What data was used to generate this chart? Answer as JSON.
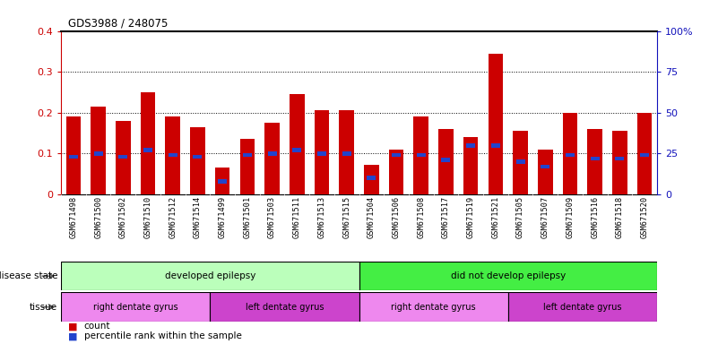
{
  "title": "GDS3988 / 248075",
  "samples": [
    "GSM671498",
    "GSM671500",
    "GSM671502",
    "GSM671510",
    "GSM671512",
    "GSM671514",
    "GSM671499",
    "GSM671501",
    "GSM671503",
    "GSM671511",
    "GSM671513",
    "GSM671515",
    "GSM671504",
    "GSM671506",
    "GSM671508",
    "GSM671517",
    "GSM671519",
    "GSM671521",
    "GSM671505",
    "GSM671507",
    "GSM671509",
    "GSM671516",
    "GSM671518",
    "GSM671520"
  ],
  "count_values": [
    0.19,
    0.215,
    0.18,
    0.25,
    0.19,
    0.165,
    0.065,
    0.135,
    0.175,
    0.245,
    0.205,
    0.205,
    0.072,
    0.11,
    0.19,
    0.16,
    0.14,
    0.345,
    0.155,
    0.11,
    0.2,
    0.16,
    0.155,
    0.2
  ],
  "percentile_values": [
    23,
    25,
    23,
    27,
    24,
    23,
    8,
    24,
    25,
    27,
    25,
    25,
    10,
    24,
    24,
    21,
    30,
    30,
    20,
    17,
    24,
    22,
    22,
    24
  ],
  "bar_color": "#cc0000",
  "blue_color": "#2244cc",
  "ylim_left": [
    0,
    0.4
  ],
  "ylim_right": [
    0,
    100
  ],
  "yticks_left": [
    0,
    0.1,
    0.2,
    0.3,
    0.4
  ],
  "yticks_right": [
    0,
    25,
    50,
    75,
    100
  ],
  "ytick_labels_left": [
    "0",
    "0.1",
    "0.2",
    "0.3",
    "0.4"
  ],
  "ytick_labels_right": [
    "0",
    "25",
    "50",
    "75",
    "100%"
  ],
  "disease_state_groups": [
    {
      "label": "developed epilepsy",
      "start": 0,
      "end": 12,
      "color": "#bbffbb"
    },
    {
      "label": "did not develop epilepsy",
      "start": 12,
      "end": 24,
      "color": "#44ee44"
    }
  ],
  "tissue_groups": [
    {
      "label": "right dentate gyrus",
      "start": 0,
      "end": 6,
      "color": "#ee88ee"
    },
    {
      "label": "left dentate gyrus",
      "start": 6,
      "end": 12,
      "color": "#cc44cc"
    },
    {
      "label": "right dentate gyrus",
      "start": 12,
      "end": 18,
      "color": "#ee88ee"
    },
    {
      "label": "left dentate gyrus",
      "start": 18,
      "end": 24,
      "color": "#cc44cc"
    }
  ],
  "disease_state_label": "disease state",
  "tissue_label": "tissue",
  "legend_count": "count",
  "legend_percentile": "percentile rank within the sample",
  "bar_width": 0.6,
  "xtick_bg_color": "#d8d8d8"
}
